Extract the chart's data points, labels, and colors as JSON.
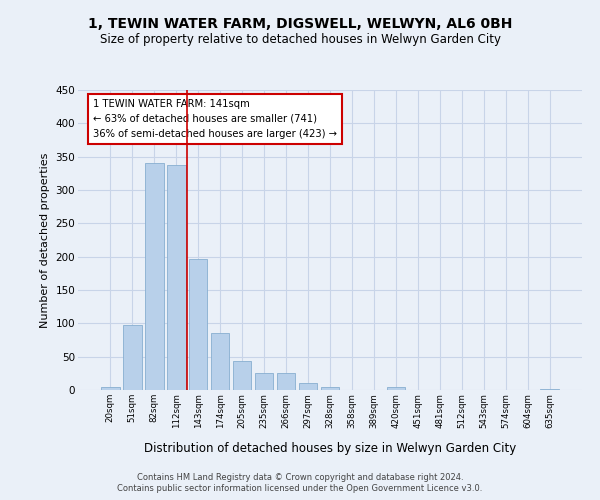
{
  "title": "1, TEWIN WATER FARM, DIGSWELL, WELWYN, AL6 0BH",
  "subtitle": "Size of property relative to detached houses in Welwyn Garden City",
  "xlabel": "Distribution of detached houses by size in Welwyn Garden City",
  "ylabel": "Number of detached properties",
  "footnote1": "Contains HM Land Registry data © Crown copyright and database right 2024.",
  "footnote2": "Contains public sector information licensed under the Open Government Licence v3.0.",
  "bin_labels": [
    "20sqm",
    "51sqm",
    "82sqm",
    "112sqm",
    "143sqm",
    "174sqm",
    "205sqm",
    "235sqm",
    "266sqm",
    "297sqm",
    "328sqm",
    "358sqm",
    "389sqm",
    "420sqm",
    "451sqm",
    "481sqm",
    "512sqm",
    "543sqm",
    "574sqm",
    "604sqm",
    "635sqm"
  ],
  "bar_values": [
    5,
    97,
    340,
    337,
    197,
    85,
    43,
    26,
    25,
    11,
    5,
    0,
    0,
    5,
    0,
    0,
    0,
    0,
    0,
    0,
    2
  ],
  "bar_color": "#b8d0ea",
  "bar_edge_color": "#88afd0",
  "property_line_label": "1 TEWIN WATER FARM: 141sqm",
  "annotation_line1": "← 63% of detached houses are smaller (741)",
  "annotation_line2": "36% of semi-detached houses are larger (423) →",
  "annotation_box_color": "#ffffff",
  "annotation_box_edge_color": "#cc0000",
  "vline_color": "#cc0000",
  "vline_index": 3.5,
  "ylim": [
    0,
    450
  ],
  "yticks": [
    0,
    50,
    100,
    150,
    200,
    250,
    300,
    350,
    400,
    450
  ],
  "grid_color": "#c8d4e8",
  "background_color": "#eaf0f8",
  "title_fontsize": 10,
  "subtitle_fontsize": 8.5,
  "footnote_fontsize": 6,
  "ylabel_fontsize": 8,
  "xlabel_fontsize": 8.5
}
